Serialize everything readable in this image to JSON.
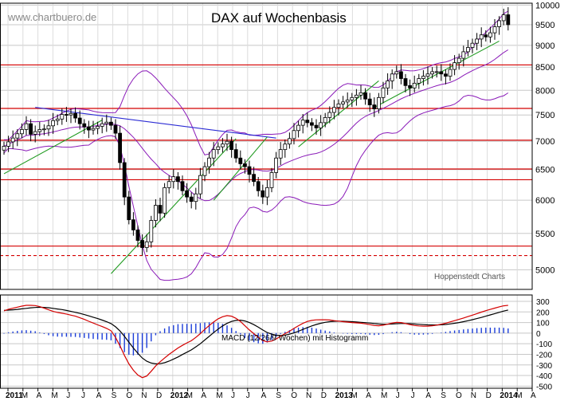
{
  "chart_data": [
    {
      "type": "candlestick",
      "title": "DAX auf Wochenbasis",
      "watermark": "www.chartbuero.de",
      "credit": "Hoppenstedt Charts",
      "y_axis": {
        "ticks": [
          5000,
          5500,
          6000,
          6500,
          7000,
          7500,
          8000,
          8500,
          9000,
          9500,
          10000
        ],
        "range": [
          4750,
          10050
        ],
        "scale": "log",
        "grid": true
      },
      "horizontal_lines": [
        {
          "value": 8550,
          "style": "solid",
          "color": "#d40000"
        },
        {
          "value": 7630,
          "style": "solid",
          "color": "#d40000"
        },
        {
          "value": 7020,
          "style": "solid",
          "color": "#d40000"
        },
        {
          "value": 6510,
          "style": "solid",
          "color": "#d40000"
        },
        {
          "value": 6330,
          "style": "solid",
          "color": "#d40000"
        },
        {
          "value": 5320,
          "style": "solid",
          "color": "#d40000"
        },
        {
          "value": 5190,
          "style": "dashed",
          "color": "#d40000"
        }
      ],
      "trend_lines": [
        {
          "color": "#2b2bd4",
          "from": {
            "week": 7,
            "value": 7650
          },
          "to": {
            "week": 61,
            "value": 7060
          }
        },
        {
          "color": "#1f9a1f",
          "from": {
            "week": 0,
            "value": 6430
          },
          "to": {
            "week": 22,
            "value": 7400
          }
        },
        {
          "color": "#1f9a1f",
          "from": {
            "week": 24,
            "value": 4950
          },
          "to": {
            "week": 52,
            "value": 7050
          }
        },
        {
          "color": "#1f9a1f",
          "from": {
            "week": 47,
            "value": 6000
          },
          "to": {
            "week": 59,
            "value": 7080
          }
        },
        {
          "color": "#1f9a1f",
          "from": {
            "week": 66,
            "value": 6900
          },
          "to": {
            "week": 84,
            "value": 8200
          }
        },
        {
          "color": "#1f9a1f",
          "from": {
            "week": 83,
            "value": 7650
          },
          "to": {
            "week": 111,
            "value": 9100
          }
        }
      ],
      "bollinger_color": "#8a1ab8",
      "weekly_close": [
        6910,
        6990,
        7060,
        7140,
        7220,
        7330,
        7130,
        7180,
        7220,
        7230,
        7290,
        7390,
        7420,
        7510,
        7500,
        7530,
        7440,
        7330,
        7270,
        7210,
        7240,
        7280,
        7330,
        7360,
        7300,
        7150,
        6620,
        6050,
        5700,
        5550,
        5400,
        5300,
        5380,
        5690,
        5920,
        5800,
        6200,
        6300,
        6380,
        6300,
        6150,
        6050,
        5980,
        6100,
        6400,
        6550,
        6700,
        6850,
        6900,
        6950,
        7000,
        6850,
        6700,
        6600,
        6550,
        6420,
        6300,
        6150,
        6050,
        6200,
        6450,
        6700,
        6850,
        6950,
        7050,
        7200,
        7300,
        7400,
        7350,
        7300,
        7250,
        7350,
        7450,
        7550,
        7650,
        7720,
        7760,
        7800,
        7850,
        7900,
        7950,
        7820,
        7700,
        7620,
        7850,
        8050,
        8200,
        8350,
        8400,
        8250,
        8100,
        8050,
        8150,
        8250,
        8300,
        8350,
        8400,
        8400,
        8350,
        8300,
        8450,
        8600,
        8700,
        8850,
        8950,
        9050,
        9150,
        9250,
        9200,
        9300,
        9450,
        9600,
        9750,
        9500
      ],
      "macd_panel": {
        "label": "MACD (12/26/9 Wochen) mit Histogramm",
        "y_ticks": [
          300,
          200,
          100,
          0,
          -100,
          -200,
          -300,
          -400,
          -500
        ],
        "y_range": [
          -520,
          360
        ],
        "macd_color": "#d40000",
        "signal_color": "#000000",
        "histogram_color": "#1a3cd8",
        "macd": [
          210,
          225,
          235,
          245,
          255,
          262,
          262,
          260,
          250,
          235,
          220,
          205,
          195,
          188,
          180,
          170,
          160,
          145,
          130,
          112,
          95,
          78,
          62,
          45,
          22,
          -40,
          -120,
          -210,
          -290,
          -350,
          -395,
          -420,
          -405,
          -360,
          -310,
          -270,
          -235,
          -200,
          -170,
          -140,
          -115,
          -92,
          -72,
          -40,
          -5,
          35,
          72,
          105,
          135,
          155,
          165,
          160,
          140,
          110,
          70,
          30,
          -5,
          -40,
          -70,
          -82,
          -75,
          -55,
          -30,
          -5,
          18,
          45,
          70,
          92,
          110,
          120,
          125,
          126,
          126,
          124,
          118,
          113,
          108,
          104,
          100,
          97,
          94,
          88,
          80,
          72,
          70,
          75,
          85,
          95,
          102,
          100,
          90,
          80,
          72,
          68,
          66,
          66,
          70,
          76,
          84,
          94,
          106,
          118,
          130,
          143,
          156,
          170,
          184,
          198,
          212,
          224,
          236,
          248,
          258,
          262
        ],
        "signal": [
          215,
          217,
          220,
          224,
          229,
          234,
          239,
          242,
          244,
          243,
          240,
          234,
          228,
          222,
          214,
          205,
          196,
          186,
          175,
          163,
          150,
          137,
          123,
          108,
          90,
          60,
          20,
          -30,
          -85,
          -140,
          -190,
          -235,
          -265,
          -282,
          -290,
          -288,
          -279,
          -264,
          -245,
          -225,
          -202,
          -180,
          -158,
          -130,
          -100,
          -65,
          -30,
          5,
          38,
          68,
          92,
          110,
          120,
          122,
          115,
          100,
          80,
          56,
          30,
          6,
          -10,
          -20,
          -22,
          -18,
          -10,
          2,
          18,
          35,
          52,
          68,
          82,
          93,
          102,
          108,
          112,
          113,
          112,
          110,
          108,
          105,
          102,
          99,
          95,
          90,
          86,
          84,
          84,
          86,
          89,
          91,
          91,
          89,
          86,
          83,
          80,
          78,
          77,
          77,
          79,
          82,
          87,
          93,
          100,
          108,
          117,
          127,
          137,
          148,
          160,
          172,
          184,
          196,
          208,
          218
        ]
      }
    }
  ],
  "x_axis": {
    "labels": [
      "2011",
      "M",
      "A",
      "M",
      "J",
      "J",
      "A",
      "S",
      "O",
      "N",
      "D",
      "2012",
      "M",
      "A",
      "M",
      "J",
      "J",
      "A",
      "S",
      "O",
      "N",
      "D",
      "2013",
      "M",
      "A",
      "M",
      "J",
      "J",
      "A",
      "S",
      "O",
      "N",
      "D",
      "2014",
      "M",
      "A"
    ],
    "bold_labels": [
      "2011",
      "2012",
      "2013",
      "2014"
    ]
  }
}
